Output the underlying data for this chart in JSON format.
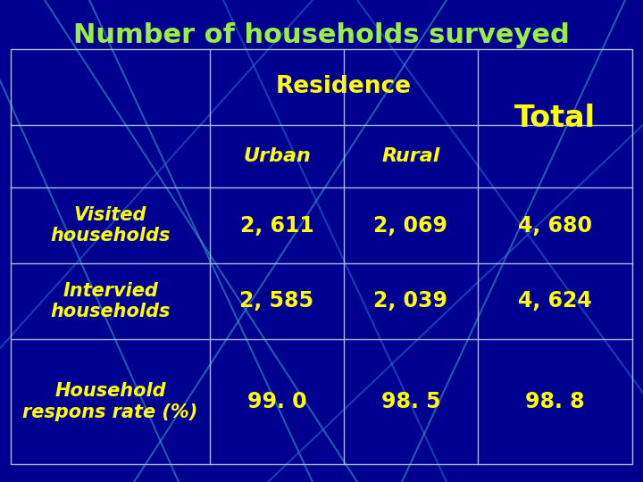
{
  "title": "Number of households surveyed",
  "title_color": "#99ee44",
  "title_fontsize": 22,
  "background_color": "#000090",
  "grid_color": "#aabbdd",
  "text_color": "#ffff00",
  "header1": "Residence",
  "header2_urban": "Urban",
  "header2_rural": "Rural",
  "header2_total": "Total",
  "row_labels": [
    "Visited\nhouseholds",
    "Intervied\nhouseholds",
    "Household\nrespons rate (%)"
  ],
  "col_urban": [
    "2, 611",
    "2, 585",
    "99. 0"
  ],
  "col_rural": [
    "2, 069",
    "2, 039",
    "98. 5"
  ],
  "col_total": [
    "4, 680",
    "4, 624",
    "98. 8"
  ],
  "line_color": "#2266cc",
  "line_color2": "#3399cc"
}
